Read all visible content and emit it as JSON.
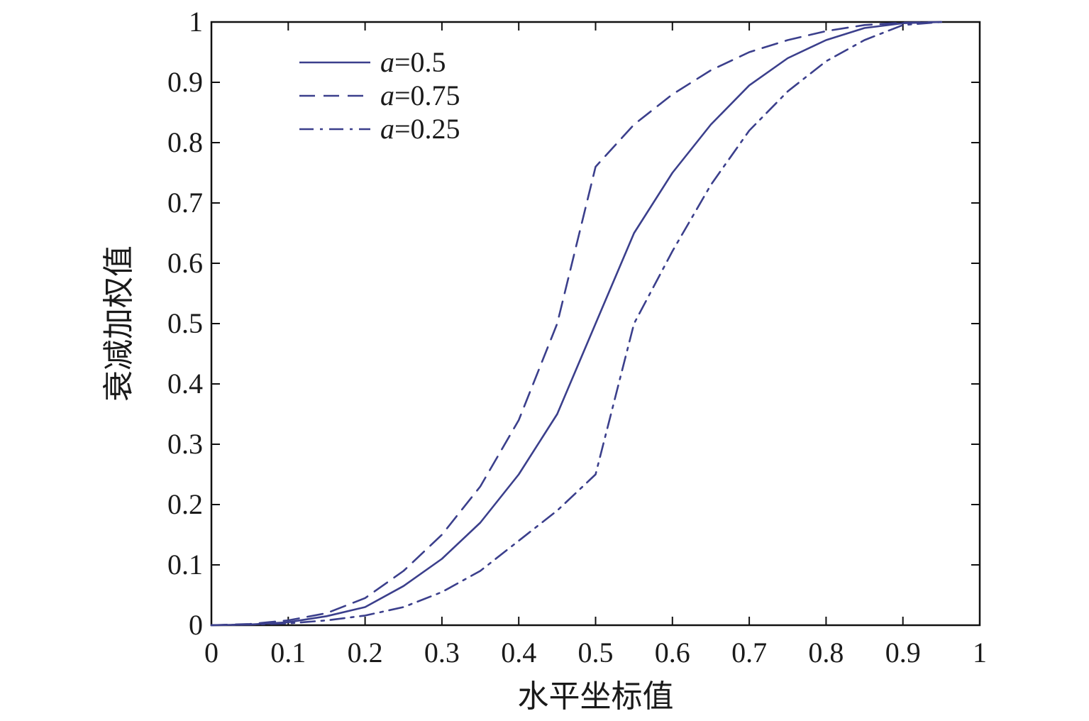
{
  "chart_data": {
    "type": "line",
    "xlabel": "水平坐标值",
    "ylabel": "衰减加权值",
    "xlim": [
      0,
      1
    ],
    "ylim": [
      0,
      1
    ],
    "xticks": [
      "0",
      "0.1",
      "0.2",
      "0.3",
      "0.4",
      "0.5",
      "0.6",
      "0.7",
      "0.8",
      "0.9",
      "1"
    ],
    "yticks": [
      "0",
      "0.1",
      "0.2",
      "0.3",
      "0.4",
      "0.5",
      "0.6",
      "0.7",
      "0.8",
      "0.9",
      "1"
    ],
    "grid": false,
    "legend_position": "top-left",
    "line_color": "#3b3f8c",
    "series": [
      {
        "name": "a=0.5",
        "var": "a",
        "value_label": "=0.5",
        "style": "solid",
        "x": [
          0,
          0.05,
          0.1,
          0.15,
          0.2,
          0.25,
          0.3,
          0.35,
          0.4,
          0.45,
          0.5,
          0.55,
          0.6,
          0.65,
          0.7,
          0.75,
          0.8,
          0.85,
          0.9,
          0.95
        ],
        "y": [
          0,
          0.001,
          0.005,
          0.015,
          0.03,
          0.065,
          0.11,
          0.17,
          0.25,
          0.35,
          0.5,
          0.65,
          0.75,
          0.83,
          0.895,
          0.94,
          0.97,
          0.99,
          0.998,
          1.0
        ]
      },
      {
        "name": "a=0.75",
        "var": "a",
        "value_label": "=0.75",
        "style": "dashed",
        "x": [
          0,
          0.05,
          0.1,
          0.15,
          0.2,
          0.25,
          0.3,
          0.35,
          0.4,
          0.45,
          0.5,
          0.55,
          0.6,
          0.65,
          0.7,
          0.75,
          0.8,
          0.85,
          0.9,
          0.95
        ],
        "y": [
          0,
          0.002,
          0.008,
          0.02,
          0.045,
          0.09,
          0.15,
          0.23,
          0.34,
          0.5,
          0.76,
          0.83,
          0.88,
          0.92,
          0.95,
          0.97,
          0.985,
          0.995,
          0.999,
          1.0
        ]
      },
      {
        "name": "a=0.25",
        "var": "a",
        "value_label": "=0.25",
        "style": "dashdot",
        "x": [
          0,
          0.05,
          0.1,
          0.15,
          0.2,
          0.25,
          0.3,
          0.35,
          0.4,
          0.45,
          0.5,
          0.55,
          0.6,
          0.65,
          0.7,
          0.75,
          0.8,
          0.85,
          0.9,
          0.95
        ],
        "y": [
          0,
          0.001,
          0.003,
          0.008,
          0.016,
          0.03,
          0.055,
          0.09,
          0.14,
          0.19,
          0.25,
          0.5,
          0.62,
          0.73,
          0.82,
          0.885,
          0.935,
          0.97,
          0.995,
          1.0
        ]
      }
    ]
  }
}
